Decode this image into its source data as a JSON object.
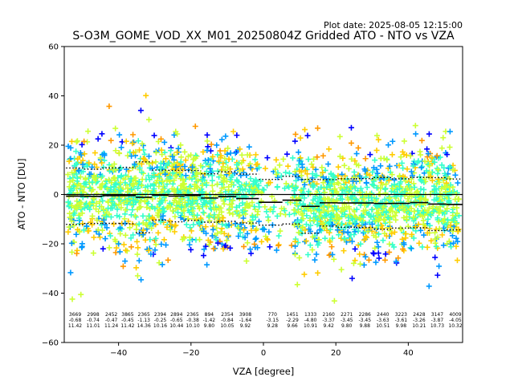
{
  "plot_date": "Plot date: 2025-08-05 12:15:00",
  "chart_data": {
    "type": "scatter",
    "title": "S-O3M_GOME_VOD_XX_M01_20250804Z Gridded ATO - NTO vs VZA",
    "xlabel": "VZA [degree]",
    "ylabel": "ATO - NTO [DU]",
    "xlim": [
      -55,
      55
    ],
    "ylim": [
      -60,
      60
    ],
    "xticks": [
      -40,
      -20,
      0,
      20,
      40
    ],
    "yticks": [
      -60,
      -40,
      -20,
      0,
      20,
      40,
      60
    ],
    "xtick_labels": [
      "−40",
      "−20",
      "0",
      "20",
      "40"
    ],
    "ytick_labels": [
      "−60",
      "−40",
      "−20",
      "0",
      "20",
      "40",
      "60"
    ],
    "grid": false,
    "marker": "+",
    "colormap": [
      "#0000ff",
      "#0099ff",
      "#33ffcc",
      "#ccff33",
      "#ffcc00",
      "#ff9900"
    ],
    "bins": [
      {
        "center": -52.0,
        "n": "3669",
        "mean": "-0.68",
        "std": "11.42"
      },
      {
        "center": -47.0,
        "n": "2998",
        "mean": "-0.74",
        "std": "11.01"
      },
      {
        "center": -42.0,
        "n": "2452",
        "mean": "-0.47",
        "std": "11.24"
      },
      {
        "center": -37.5,
        "n": "3865",
        "mean": "-0.45",
        "std": "11.42"
      },
      {
        "center": -33.0,
        "n": "2365",
        "mean": "-1.13",
        "std": "14.36"
      },
      {
        "center": -28.5,
        "n": "2394",
        "mean": "-0.25",
        "std": "10.16"
      },
      {
        "center": -24.0,
        "n": "2894",
        "mean": "-0.65",
        "std": "10.44"
      },
      {
        "center": -19.5,
        "n": "2365",
        "mean": "-0.38",
        "std": "10.10"
      },
      {
        "center": -15.0,
        "n": "894",
        "mean": "-1.42",
        "std": "9.80"
      },
      {
        "center": -10.0,
        "n": "2354",
        "mean": "-0.84",
        "std": "10.05"
      },
      {
        "center": -5.0,
        "n": "3908",
        "mean": "-1.64",
        "std": "9.92"
      },
      {
        "center": 2.5,
        "n": "770",
        "mean": "-3.15",
        "std": "9.28"
      },
      {
        "center": 8.0,
        "n": "1451",
        "mean": "-2.29",
        "std": "9.66"
      },
      {
        "center": 13.0,
        "n": "1333",
        "mean": "-4.80",
        "std": "10.91"
      },
      {
        "center": 18.0,
        "n": "2160",
        "mean": "-3.37",
        "std": "9.42"
      },
      {
        "center": 23.0,
        "n": "2271",
        "mean": "-3.45",
        "std": "9.80"
      },
      {
        "center": 28.0,
        "n": "2286",
        "mean": "-3.45",
        "std": "9.88"
      },
      {
        "center": 33.0,
        "n": "2440",
        "mean": "-3.63",
        "std": "10.51"
      },
      {
        "center": 38.0,
        "n": "3223",
        "mean": "-3.61",
        "std": "9.98"
      },
      {
        "center": 43.0,
        "n": "2428",
        "mean": "-3.26",
        "std": "10.21"
      },
      {
        "center": 48.0,
        "n": "3147",
        "mean": "-3.87",
        "std": "10.73"
      },
      {
        "center": 53.0,
        "n": "4009",
        "mean": "-4.05",
        "std": "10.32"
      }
    ]
  }
}
